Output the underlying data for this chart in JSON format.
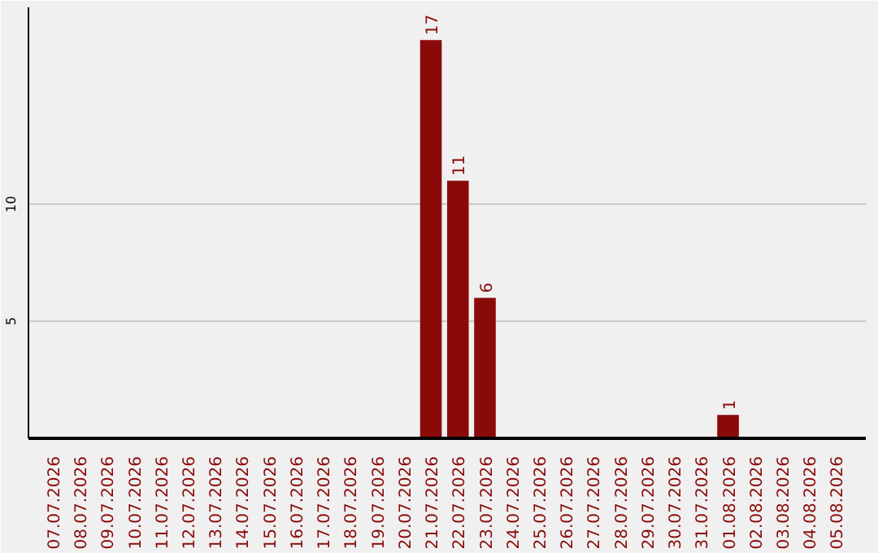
{
  "chart_data": {
    "type": "bar",
    "categories": [
      "07.07.2026",
      "08.07.2026",
      "09.07.2026",
      "10.07.2026",
      "11.07.2026",
      "12.07.2026",
      "13.07.2026",
      "14.07.2026",
      "15.07.2026",
      "16.07.2026",
      "17.07.2026",
      "18.07.2026",
      "19.07.2026",
      "20.07.2026",
      "21.07.2026",
      "22.07.2026",
      "23.07.2026",
      "24.07.2026",
      "25.07.2026",
      "26.07.2026",
      "27.07.2026",
      "28.07.2026",
      "29.07.2026",
      "30.07.2026",
      "31.07.2026",
      "01.08.2026",
      "02.08.2026",
      "03.08.2026",
      "04.08.2026",
      "05.08.2026"
    ],
    "values": [
      0,
      0,
      0,
      0,
      0,
      0,
      0,
      0,
      0,
      0,
      0,
      0,
      0,
      0,
      17,
      11,
      6,
      0,
      0,
      0,
      0,
      0,
      0,
      0,
      0,
      1,
      0,
      0,
      0,
      0
    ],
    "value_labels": [
      null,
      null,
      null,
      null,
      null,
      null,
      null,
      null,
      null,
      null,
      null,
      null,
      null,
      null,
      "17",
      "11",
      "6",
      null,
      null,
      null,
      null,
      null,
      null,
      null,
      null,
      "1",
      null,
      null,
      null,
      null
    ],
    "color": "#8a0a0a",
    "ylim": [
      0,
      18.4
    ],
    "yticks": [
      5,
      10
    ],
    "grid": "y"
  }
}
